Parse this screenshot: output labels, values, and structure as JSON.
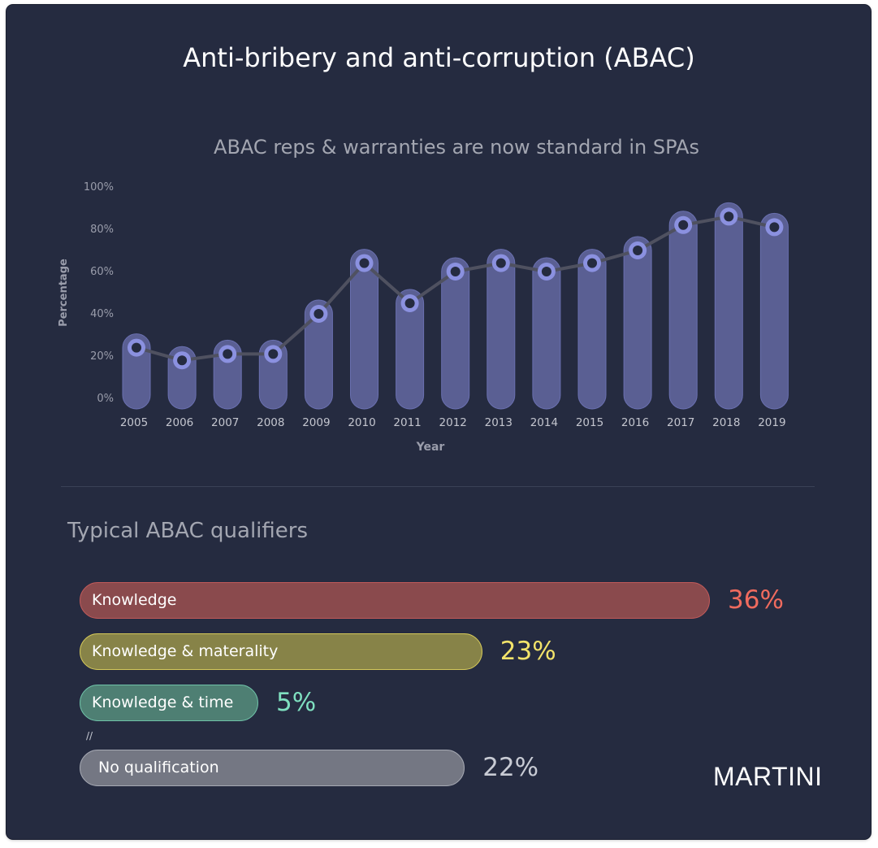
{
  "title": "Anti-bribery and anti-corruption (ABAC)",
  "subtitle": "ABAC reps & warranties are now standard in SPAs",
  "chart_data": {
    "type": "line",
    "title": "ABAC reps & warranties are now standard in SPAs",
    "xlabel": "Year",
    "ylabel": "Percentage",
    "ylim": [
      0,
      100
    ],
    "yticks": [
      "0%",
      "20%",
      "40%",
      "60%",
      "80%",
      "100%"
    ],
    "categories": [
      "2005",
      "2006",
      "2007",
      "2008",
      "2009",
      "2010",
      "2011",
      "2012",
      "2013",
      "2014",
      "2015",
      "2016",
      "2017",
      "2018",
      "2019"
    ],
    "values": [
      24,
      18,
      21,
      21,
      40,
      64,
      45,
      60,
      64,
      60,
      64,
      70,
      82,
      86,
      81
    ],
    "grid": false,
    "legend": "none",
    "colors": {
      "line": "#4f5160",
      "bar": "#5a5f93",
      "marker_ring": "#8b91e0",
      "marker_center": "#252b40"
    }
  },
  "qualifiers": {
    "title": "Typical ABAC qualifiers",
    "items": [
      {
        "label": "Knowledge",
        "value": "36%",
        "fraction": 0.36,
        "color": "#8a4a4d",
        "border": "#c05a5a",
        "pct_color": "#f06b5e"
      },
      {
        "label": "Knowledge & materality",
        "value": "23%",
        "fraction": 0.23,
        "color": "#878348",
        "border": "#d4c85a",
        "pct_color": "#f2e36a"
      },
      {
        "label": "Knowledge & time",
        "value": "5%",
        "fraction": 0.05,
        "color": "#4e7f73",
        "border": "#6fc2a8",
        "pct_color": "#7fe0c0"
      },
      {
        "label": "No qualification",
        "value": "22%",
        "fraction": 0.22,
        "color": "#747783",
        "border": "#a6a9b3",
        "pct_color": "#c8cbd4"
      }
    ],
    "break_marker": "//"
  },
  "brand": "MARTINI"
}
